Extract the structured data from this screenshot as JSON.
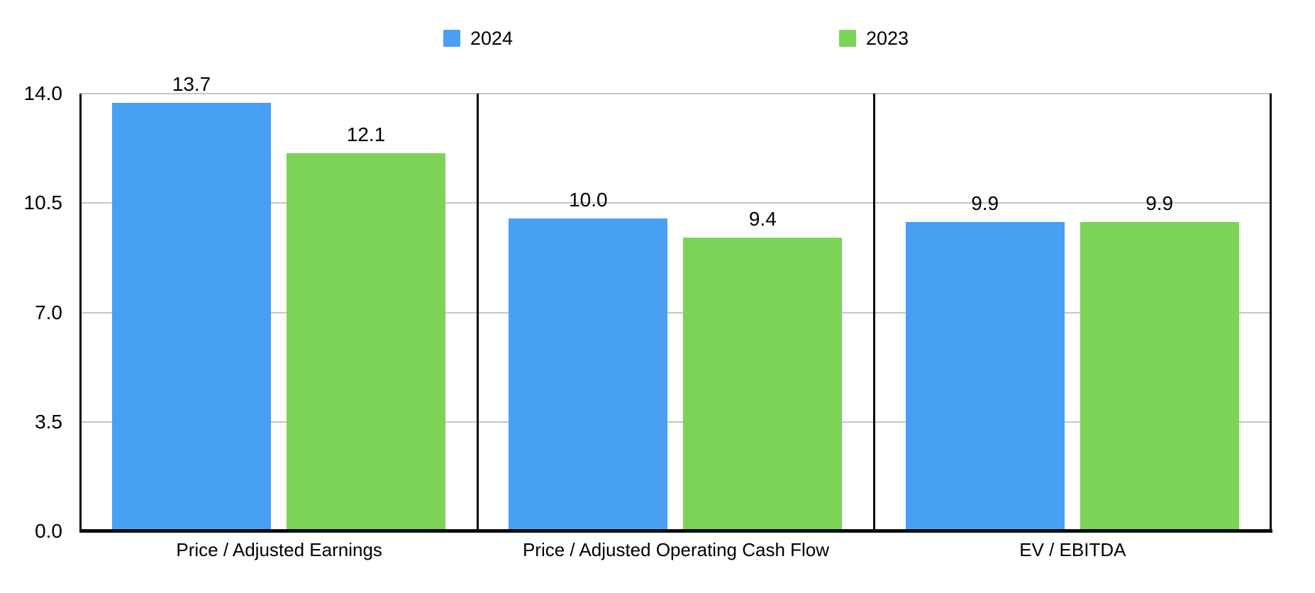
{
  "chart_data": {
    "type": "bar",
    "title": "",
    "categories": [
      "Price / Adjusted Earnings",
      "Price / Adjusted Operating Cash Flow",
      "EV / EBITDA"
    ],
    "series": [
      {
        "name": "2024",
        "color": "#47A0F4",
        "values": [
          13.7,
          10.0,
          9.9
        ]
      },
      {
        "name": "2023",
        "color": "#7DD356",
        "values": [
          12.1,
          9.4,
          9.9
        ]
      }
    ],
    "value_labels": [
      [
        "13.7",
        "10.0",
        "9.9"
      ],
      [
        "12.1",
        "9.4",
        "9.9"
      ]
    ],
    "y_ticks": [
      {
        "value": 0,
        "label": "0.0"
      },
      {
        "value": 3.5,
        "label": "3.5"
      },
      {
        "value": 7,
        "label": "7.0"
      },
      {
        "value": 10.5,
        "label": "10.5"
      },
      {
        "value": 14,
        "label": "14.0"
      }
    ],
    "ylim": [
      0,
      14
    ],
    "xlabel": "",
    "ylabel": "",
    "legend_position": "top",
    "grid": true,
    "grid_color": "#C6C6C6",
    "axis_color": "#0A0A0A",
    "text_color": "#000000",
    "background": "#FFFFFF"
  }
}
